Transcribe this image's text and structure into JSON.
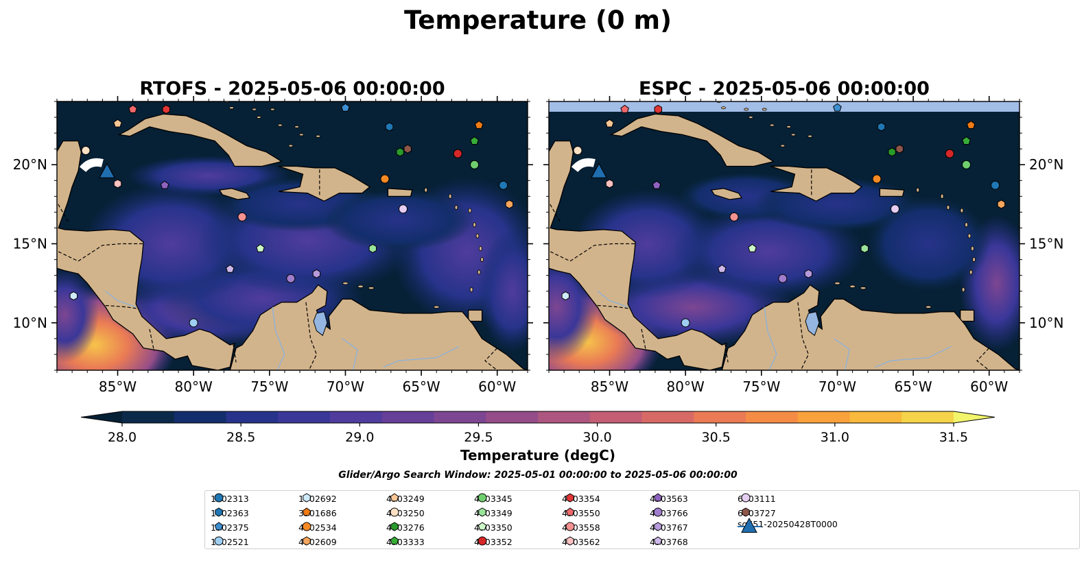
{
  "figure_title": "Temperature (0 m)",
  "panels": [
    {
      "title": "RTOFS - 2025-05-06 00:00:00"
    },
    {
      "title": "ESPC - 2025-05-06 00:00:00"
    }
  ],
  "map_extent": {
    "lon": [
      -89,
      -58
    ],
    "lat": [
      7,
      24
    ]
  },
  "lon_ticks": [
    {
      "value": -85,
      "label": "85°W"
    },
    {
      "value": -80,
      "label": "80°W"
    },
    {
      "value": -75,
      "label": "75°W"
    },
    {
      "value": -70,
      "label": "70°W"
    },
    {
      "value": -65,
      "label": "65°W"
    },
    {
      "value": -60,
      "label": "60°W"
    }
  ],
  "lat_ticks": [
    {
      "value": 20,
      "label": "20°N"
    },
    {
      "value": 15,
      "label": "15°N"
    },
    {
      "value": 10,
      "label": "10°N"
    }
  ],
  "colorbar": {
    "label": "Temperature (degC)",
    "min": 28.0,
    "max": 31.5,
    "ticks": [
      "28.0",
      "28.5",
      "29.0",
      "29.5",
      "30.0",
      "30.5",
      "31.0",
      "31.5"
    ],
    "colors": [
      "#0b2a4a",
      "#132e6c",
      "#27338a",
      "#3a3799",
      "#503c9c",
      "#663f99",
      "#7d4692",
      "#944d88",
      "#ad567f",
      "#c35e74",
      "#d86a66",
      "#ea7b55",
      "#f48c46",
      "#f9a13c",
      "#f8b93c",
      "#f5d44a",
      "#efec6a"
    ],
    "under_color": "#062035",
    "over_color": "#f2f56b"
  },
  "search_window": "Glider/Argo Search Window: 2025-05-01 00:00:00 to 2025-05-06 00:00:00",
  "colors": {
    "ocean_cold": "#062035",
    "land": "#d2b48c",
    "lake": "#94b6e0",
    "glider": "#1f6eb0",
    "missing": "#a2bde6"
  },
  "legend": [
    {
      "id": "1902313",
      "marker": "circle",
      "color": "#1f77b4"
    },
    {
      "id": "1902363",
      "marker": "hexagon",
      "color": "#1f77b4"
    },
    {
      "id": "1902375",
      "marker": "pentagon",
      "color": "#3d8fd1"
    },
    {
      "id": "1902521",
      "marker": "circle",
      "color": "#9fcff2"
    },
    {
      "id": "1902692",
      "marker": "hexagon",
      "color": "#cfeafb"
    },
    {
      "id": "3901686",
      "marker": "pentagon",
      "color": "#ef7b14"
    },
    {
      "id": "4902534",
      "marker": "circle",
      "color": "#f58a25"
    },
    {
      "id": "4902609",
      "marker": "hexagon",
      "color": "#f6a55c"
    },
    {
      "id": "4903249",
      "marker": "pentagon",
      "color": "#f9c796"
    },
    {
      "id": "4903250",
      "marker": "circle",
      "color": "#fbe0c4"
    },
    {
      "id": "4903276",
      "marker": "hexagon",
      "color": "#2a9a2a"
    },
    {
      "id": "4903333",
      "marker": "pentagon",
      "color": "#37ad37"
    },
    {
      "id": "4903345",
      "marker": "circle",
      "color": "#6fcf6f"
    },
    {
      "id": "4903349",
      "marker": "hexagon",
      "color": "#9be49b"
    },
    {
      "id": "4903350",
      "marker": "pentagon",
      "color": "#ccf7c8"
    },
    {
      "id": "4903352",
      "marker": "circle",
      "color": "#d62728"
    },
    {
      "id": "4903354",
      "marker": "hexagon",
      "color": "#e03636"
    },
    {
      "id": "4903550",
      "marker": "pentagon",
      "color": "#f0686a"
    },
    {
      "id": "4903558",
      "marker": "circle",
      "color": "#f49191"
    },
    {
      "id": "4903562",
      "marker": "hexagon",
      "color": "#f9c1c0"
    },
    {
      "id": "4903563",
      "marker": "pentagon",
      "color": "#8e63c0"
    },
    {
      "id": "4903766",
      "marker": "circle",
      "color": "#a07dcc"
    },
    {
      "id": "4903767",
      "marker": "hexagon",
      "color": "#b79bdc"
    },
    {
      "id": "4903768",
      "marker": "pentagon",
      "color": "#cdb8ea"
    },
    {
      "id": "6903111",
      "marker": "circle",
      "color": "#e6cdf2"
    },
    {
      "id": "6903727",
      "marker": "hexagon",
      "color": "#8c564b"
    },
    {
      "id": "sg651-20250428T0000",
      "marker": "triangle",
      "color": "#1f6eb0"
    }
  ],
  "floats": [
    {
      "id": "4903550",
      "lon": -84.0,
      "lat": 23.5
    },
    {
      "id": "4903354",
      "lon": -81.8,
      "lat": 23.5
    },
    {
      "id": "1902375",
      "lon": -70.0,
      "lat": 23.6
    },
    {
      "id": "4903249",
      "lon": -85.0,
      "lat": 22.6
    },
    {
      "id": "1902363",
      "lon": -67.1,
      "lat": 22.4
    },
    {
      "id": "3901686",
      "lon": -61.2,
      "lat": 22.5
    },
    {
      "id": "4903333",
      "lon": -61.5,
      "lat": 21.5
    },
    {
      "id": "4903276",
      "lon": -66.4,
      "lat": 20.8
    },
    {
      "id": "6903727",
      "lon": -65.9,
      "lat": 21.0
    },
    {
      "id": "4903352",
      "lon": -62.6,
      "lat": 20.7
    },
    {
      "id": "4903250",
      "lon": -87.1,
      "lat": 20.9
    },
    {
      "id": "4903345",
      "lon": -61.5,
      "lat": 20.0
    },
    {
      "id": "4902534",
      "lon": -67.4,
      "lat": 19.1
    },
    {
      "id": "1902313",
      "lon": -59.6,
      "lat": 18.7
    },
    {
      "id": "4903562",
      "lon": -85.0,
      "lat": 18.8
    },
    {
      "id": "4903563",
      "lon": -81.9,
      "lat": 18.7
    },
    {
      "id": "4902609",
      "lon": -59.2,
      "lat": 17.5
    },
    {
      "id": "6903111",
      "lon": -66.2,
      "lat": 17.2
    },
    {
      "id": "4903558",
      "lon": -76.8,
      "lat": 16.7
    },
    {
      "id": "4903350",
      "lon": -75.6,
      "lat": 14.7
    },
    {
      "id": "4903349",
      "lon": -68.2,
      "lat": 14.7
    },
    {
      "id": "4903768",
      "lon": -77.6,
      "lat": 13.4
    },
    {
      "id": "4903766",
      "lon": -73.6,
      "lat": 12.8
    },
    {
      "id": "4903767",
      "lon": -71.9,
      "lat": 13.1
    },
    {
      "id": "1902692",
      "lon": -87.9,
      "lat": 11.7
    },
    {
      "id": "1902521",
      "lon": -80.0,
      "lat": 10.0
    }
  ],
  "glider": {
    "id": "sg651-20250428T0000",
    "lon": -85.7,
    "lat": 19.5
  }
}
